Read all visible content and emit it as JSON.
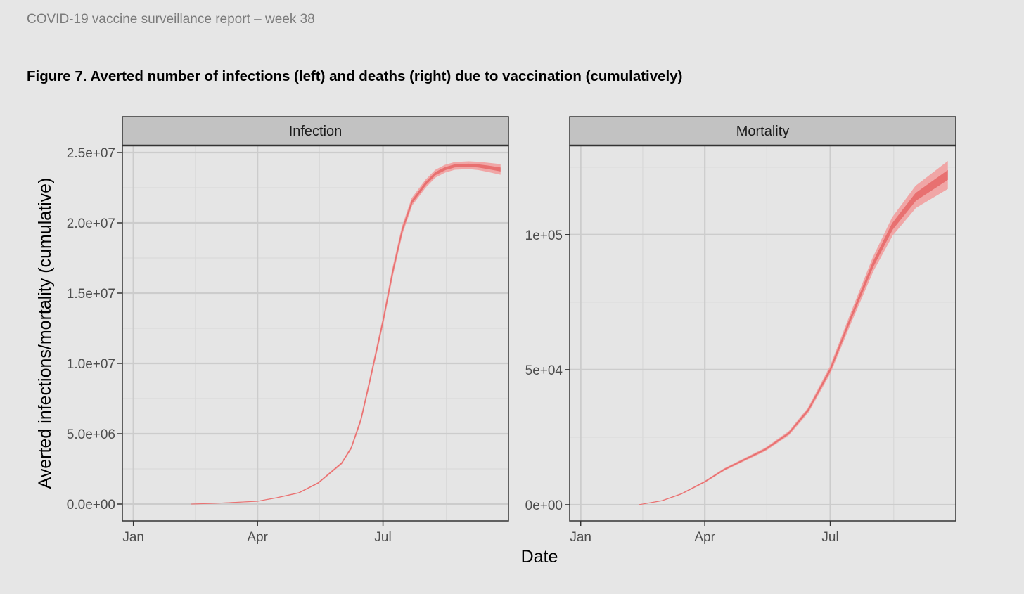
{
  "header": {
    "report_title": "COVID-19 vaccine surveillance report – week 38",
    "figure_title": "Figure 7. Averted number of infections (left) and deaths (right) due to vaccination (cumulatively)"
  },
  "colors": {
    "band_outer": "#f0a6a6",
    "band_inner": "#e87070",
    "panel_bg": "#e5e5e5",
    "strip_bg": "#c2c2c2",
    "grid_major": "#cccccc",
    "grid_minor": "#d9d9d9"
  },
  "chart_data": {
    "type": "area",
    "xlabel": "Date",
    "ylabel": "Averted infections/mortality (cumulative)",
    "x_ticks": [
      "Jan",
      "Apr",
      "Jul"
    ],
    "panels": [
      {
        "title": "Infection",
        "ylim": [
          -1200000,
          25500000
        ],
        "y_ticks": [
          {
            "value": 0,
            "label": "0.0e+00"
          },
          {
            "value": 5000000,
            "label": "5.0e+06"
          },
          {
            "value": 10000000,
            "label": "1.0e+07"
          },
          {
            "value": 15000000,
            "label": "1.5e+07"
          },
          {
            "value": 20000000,
            "label": "2.0e+07"
          },
          {
            "value": 25000000,
            "label": "2.5e+07"
          }
        ],
        "series": [
          {
            "x": [
              "2021-02-12",
              "2021-03-01",
              "2021-04-01",
              "2021-04-15",
              "2021-05-01",
              "2021-05-15",
              "2021-06-01",
              "2021-06-08",
              "2021-06-15",
              "2021-06-22",
              "2021-07-01",
              "2021-07-08",
              "2021-07-15",
              "2021-07-22",
              "2021-08-01",
              "2021-08-08",
              "2021-08-15",
              "2021-08-22",
              "2021-09-01",
              "2021-09-08",
              "2021-09-15",
              "2021-09-24"
            ],
            "y": [
              0,
              50000,
              200000,
              450000,
              800000,
              1500000,
              2900000,
              4000000,
              6000000,
              9000000,
              13000000,
              16500000,
              19500000,
              21500000,
              22800000,
              23500000,
              23850000,
              24050000,
              24100000,
              24050000,
              23950000,
              23800000
            ],
            "lower": [
              0,
              48000,
              195000,
              440000,
              785000,
              1470000,
              2850000,
              3930000,
              5880000,
              8840000,
              12800000,
              16250000,
              19250000,
              21250000,
              22550000,
              23250000,
              23600000,
              23800000,
              23850000,
              23780000,
              23650000,
              23450000
            ],
            "upper": [
              0,
              52000,
              205000,
              460000,
              815000,
              1530000,
              2950000,
              4070000,
              6120000,
              9160000,
              13200000,
              16750000,
              19750000,
              21750000,
              23050000,
              23750000,
              24100000,
              24300000,
              24350000,
              24320000,
              24250000,
              24150000
            ]
          }
        ]
      },
      {
        "title": "Mortality",
        "ylim": [
          -6000,
          133000
        ],
        "y_ticks": [
          {
            "value": 0,
            "label": "0e+00"
          },
          {
            "value": 50000,
            "label": "5e+04"
          },
          {
            "value": 100000,
            "label": "1e+05"
          }
        ],
        "series": [
          {
            "x": [
              "2021-02-12",
              "2021-03-01",
              "2021-03-15",
              "2021-04-01",
              "2021-04-15",
              "2021-05-01",
              "2021-05-15",
              "2021-06-01",
              "2021-06-15",
              "2021-07-01",
              "2021-07-15",
              "2021-08-01",
              "2021-08-15",
              "2021-09-01",
              "2021-09-24"
            ],
            "y": [
              0,
              1500,
              4000,
              8500,
              13000,
              17000,
              20500,
              26500,
              35000,
              50000,
              68000,
              89000,
              103000,
              114000,
              122000
            ],
            "lower": [
              0,
              1450,
              3900,
              8300,
              12700,
              16600,
              20000,
              25900,
              34200,
              48800,
              66300,
              86500,
              99700,
              110000,
              117000
            ],
            "upper": [
              0,
              1550,
              4100,
              8700,
              13300,
              17400,
              21000,
              27100,
              35800,
              51200,
              69700,
              91500,
              106300,
              118000,
              127000
            ]
          }
        ]
      }
    ]
  }
}
